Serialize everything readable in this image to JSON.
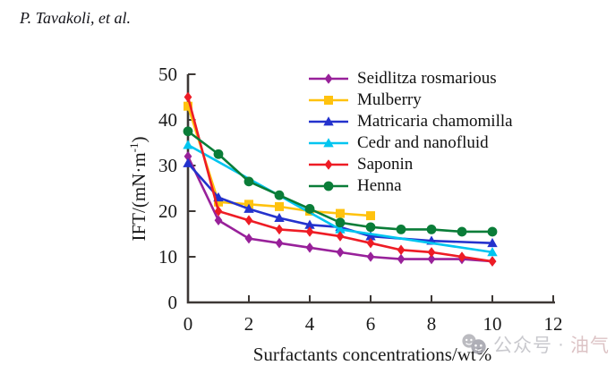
{
  "header": {
    "text": "P. Tavakoli, et al."
  },
  "chart_data": {
    "type": "line",
    "title": "",
    "xlabel": "Surfactants concentrations/wt%",
    "ylabel": "IFT/(mN·m⁻¹)",
    "ylabel_parts": {
      "main": "IFT/(mN·m",
      "sup": "-1",
      "close": ")"
    },
    "xlim": [
      0,
      12
    ],
    "ylim": [
      0,
      50
    ],
    "xticks": [
      0,
      2,
      4,
      6,
      8,
      10,
      12
    ],
    "yticks": [
      0,
      10,
      20,
      30,
      40,
      50
    ],
    "grid": false,
    "legend_position": "top-right-inside",
    "series": [
      {
        "name": "Seidlitza rosmarious",
        "color": "#98219a",
        "marker": "diamond",
        "points": [
          [
            0,
            32
          ],
          [
            1,
            18
          ],
          [
            2,
            14
          ],
          [
            3,
            13
          ],
          [
            4,
            12
          ],
          [
            5,
            11
          ],
          [
            6,
            10
          ],
          [
            7,
            9.5
          ],
          [
            8,
            9.5
          ],
          [
            9,
            9.5
          ],
          [
            10,
            9
          ]
        ]
      },
      {
        "name": "Mulberry",
        "color": "#ffc20e",
        "marker": "square",
        "points": [
          [
            0,
            43
          ],
          [
            1,
            22
          ],
          [
            2,
            21.5
          ],
          [
            3,
            21
          ],
          [
            4,
            20
          ],
          [
            5,
            19.5
          ],
          [
            6,
            19
          ]
        ]
      },
      {
        "name": "Matricaria chamomilla",
        "color": "#2432cd",
        "marker": "triangle",
        "points": [
          [
            0,
            30.5
          ],
          [
            1,
            23
          ],
          [
            2,
            20.5
          ],
          [
            3,
            18.5
          ],
          [
            4,
            17
          ],
          [
            5,
            16.5
          ],
          [
            6,
            14.5
          ],
          [
            8,
            13.5
          ],
          [
            10,
            13
          ]
        ]
      },
      {
        "name": "Cedr and nanofluid",
        "color": "#00c5f0",
        "marker": "triangle",
        "points": [
          [
            0,
            34.5
          ],
          [
            5,
            16
          ],
          [
            10,
            11
          ]
        ]
      },
      {
        "name": "Saponin",
        "color": "#ee1c25",
        "marker": "diamond",
        "points": [
          [
            0,
            45
          ],
          [
            1,
            20
          ],
          [
            2,
            18
          ],
          [
            3,
            16
          ],
          [
            4,
            15.5
          ],
          [
            5,
            14.5
          ],
          [
            6,
            13
          ],
          [
            7,
            11.5
          ],
          [
            8,
            11
          ],
          [
            9,
            10
          ],
          [
            10,
            9
          ]
        ]
      },
      {
        "name": "Henna",
        "color": "#0a7d38",
        "marker": "circle",
        "points": [
          [
            0,
            37.5
          ],
          [
            1,
            32.5
          ],
          [
            2,
            26.5
          ],
          [
            3,
            23.5
          ],
          [
            4,
            20.5
          ],
          [
            5,
            17.5
          ],
          [
            6,
            16.5
          ],
          [
            7,
            16
          ],
          [
            8,
            16
          ],
          [
            9,
            15.5
          ],
          [
            10,
            15.5
          ]
        ]
      }
    ],
    "axis_color": "#3d3835"
  },
  "watermark": {
    "icon": "chat-faces-icon",
    "text_primary": "公众号",
    "separator": "·",
    "text_secondary": "油气"
  }
}
